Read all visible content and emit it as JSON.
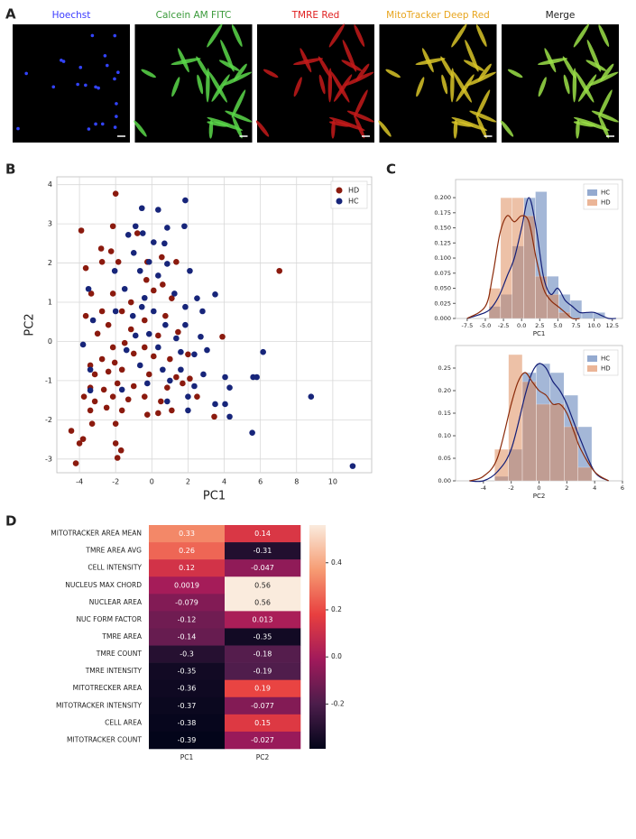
{
  "images": {
    "panel": "A",
    "titles": [
      "Hoechst",
      "Calcein AM FITC",
      "TMRE Red",
      "MitoTracker Deep Red",
      "Merge"
    ],
    "title_colors": [
      "#3b3bff",
      "#3a9a3a",
      "#e02020",
      "#e8a51e",
      "#222222"
    ]
  },
  "chart_data": [
    {
      "type": "scatter",
      "panel": "B",
      "x_label": "PC1",
      "y_label": "PC2",
      "xlim": [
        -5.25,
        12.15
      ],
      "ylim": [
        -3.35,
        4.2
      ],
      "xticks": [
        -4,
        -2,
        0,
        2,
        4,
        6,
        8,
        10
      ],
      "yticks": [
        -3,
        -2,
        -1,
        0,
        1,
        2,
        3,
        4
      ],
      "grid": true,
      "legend": "upper right",
      "series": [
        {
          "name": "HD",
          "color": "#8b1a0e",
          "x": [
            -2.0,
            -2.15,
            -3.9,
            -2.8,
            -2.25,
            -0.8,
            -3.65,
            -2.75,
            -1.85,
            -0.25,
            0.55,
            1.35,
            -0.3,
            0.6,
            -3.35,
            -2.15,
            -1.15,
            0.1,
            1.1,
            7.05,
            -2.75,
            -3.65,
            -1.65,
            -0.4,
            0.75,
            -2.4,
            -1.15,
            -3.0,
            0.35,
            1.45,
            -1.5,
            -0.4,
            -2.15,
            -1.0,
            -2.75,
            -3.4,
            -2.05,
            0.1,
            1.0,
            2.0,
            3.9,
            -3.15,
            -2.4,
            -1.65,
            -0.15,
            1.35,
            2.1,
            -3.4,
            -2.65,
            -1.9,
            -1.0,
            0.85,
            1.7,
            -3.75,
            -3.15,
            -2.15,
            -1.3,
            -0.4,
            0.5,
            2.5,
            -3.4,
            -2.5,
            -1.65,
            -0.25,
            0.35,
            1.1,
            3.45,
            -3.3,
            -2.0,
            -4.45,
            -3.8,
            -4.0,
            -2.0,
            -1.7,
            -4.2,
            -1.9
          ],
          "y": [
            3.77,
            2.94,
            2.83,
            2.37,
            2.3,
            2.76,
            1.87,
            2.03,
            2.03,
            2.03,
            2.15,
            2.03,
            1.57,
            1.45,
            1.22,
            1.22,
            1.0,
            1.3,
            1.1,
            1.8,
            0.77,
            0.65,
            0.77,
            0.54,
            0.65,
            0.42,
            0.31,
            0.2,
            0.15,
            0.24,
            -0.04,
            -0.15,
            -0.15,
            -0.31,
            -0.45,
            -0.61,
            -0.54,
            -0.38,
            -0.45,
            -0.33,
            0.12,
            -0.84,
            -0.77,
            -0.72,
            -0.84,
            -0.91,
            -0.95,
            -1.18,
            -1.23,
            -1.07,
            -1.14,
            -1.18,
            -1.07,
            -1.41,
            -1.53,
            -1.41,
            -1.48,
            -1.41,
            -1.53,
            -1.41,
            -1.76,
            -1.69,
            -1.76,
            -1.87,
            -1.83,
            -1.76,
            -1.92,
            -2.1,
            -2.1,
            -2.28,
            -2.49,
            -2.6,
            -2.6,
            -2.78,
            -3.11,
            -2.97
          ]
        },
        {
          "name": "HC",
          "color": "#17257a",
          "x": [
            -0.55,
            0.35,
            -0.9,
            -0.5,
            -1.3,
            0.85,
            1.85,
            0.7,
            0.1,
            1.8,
            -0.15,
            -1.0,
            0.85,
            2.1,
            -2.05,
            -3.5,
            -0.65,
            0.35,
            -1.5,
            -0.4,
            1.25,
            2.5,
            -1.05,
            0.1,
            1.85,
            2.8,
            3.5,
            -2.0,
            -0.55,
            0.75,
            1.85,
            -3.25,
            -0.15,
            2.7,
            1.35,
            -0.9,
            -3.8,
            -1.4,
            0.35,
            1.6,
            2.35,
            3.05,
            6.15,
            -3.4,
            -0.65,
            0.6,
            1.6,
            2.85,
            4.05,
            5.6,
            5.8,
            -0.25,
            1.0,
            2.35,
            -3.4,
            -1.65,
            2.0,
            0.85,
            4.3,
            8.8,
            4.05,
            2.0,
            3.5,
            4.3,
            5.55,
            11.1
          ],
          "y": [
            3.4,
            3.36,
            2.94,
            2.76,
            2.72,
            2.9,
            3.6,
            2.5,
            2.53,
            2.94,
            2.03,
            2.26,
            1.98,
            1.8,
            1.8,
            1.34,
            1.8,
            1.68,
            1.34,
            1.11,
            1.22,
            1.1,
            0.65,
            0.77,
            0.88,
            0.77,
            1.2,
            0.77,
            0.88,
            0.42,
            0.42,
            0.54,
            0.19,
            0.12,
            0.08,
            0.15,
            -0.08,
            -0.22,
            -0.15,
            -0.27,
            -0.33,
            -0.22,
            -0.27,
            -0.72,
            -0.61,
            -0.72,
            -0.72,
            -0.84,
            -0.91,
            -0.91,
            -0.91,
            -1.07,
            -1.0,
            -1.14,
            -1.25,
            -1.23,
            -1.41,
            -1.53,
            -1.18,
            -1.41,
            -1.6,
            -1.76,
            -1.6,
            -1.92,
            -2.33,
            -3.18
          ]
        }
      ]
    },
    {
      "type": "histogram",
      "panel": "C",
      "x_label": "PC1",
      "xlim": [
        -9.1,
        13.9
      ],
      "ylim": [
        0,
        0.23
      ],
      "xticks": [
        -7.5,
        {
          "value": -5,
          "label": "-5.0"
        },
        -2.5,
        {
          "value": 0,
          "label": "0.0"
        },
        2.5,
        {
          "value": 5,
          "label": "5.0"
        },
        7.5,
        {
          "value": 10,
          "label": "10.0"
        },
        12.5
      ],
      "yticks": [
        {
          "value": 0,
          "label": "0.000"
        },
        0.025,
        {
          "value": 0.05,
          "label": "0.050"
        },
        0.075,
        {
          "value": 0.1,
          "label": "0.100"
        },
        0.125,
        {
          "value": 0.15,
          "label": "0.150"
        },
        0.175,
        {
          "value": 0.2,
          "label": "0.200"
        }
      ],
      "legend": "upper right",
      "bins": [
        -4.5,
        -2.9,
        -1.3,
        0.3,
        1.9,
        3.5,
        5.1,
        6.7,
        8.3,
        9.9,
        11.5
      ],
      "series": [
        {
          "name": "HC",
          "color": "#4c72b0",
          "line_color": "#141f78",
          "values": [
            0.02,
            0.04,
            0.12,
            0.2,
            0.21,
            0.07,
            0.04,
            0.03,
            0.01,
            0.01
          ],
          "kde_x": [
            -7.5,
            -5,
            -4,
            -3,
            -2,
            -1,
            0,
            1,
            2,
            3,
            4,
            5,
            6,
            7,
            8,
            9,
            10,
            11,
            12,
            13
          ],
          "kde": [
            0,
            0.01,
            0.02,
            0.04,
            0.07,
            0.1,
            0.15,
            0.2,
            0.15,
            0.07,
            0.04,
            0.05,
            0.03,
            0.02,
            0.01,
            0.01,
            0.01,
            0.005,
            0,
            0
          ]
        },
        {
          "name": "HD",
          "color": "#dd8452",
          "line_color": "#8b2a0a",
          "values": [
            0.05,
            0.2,
            0.2,
            0.17,
            0.07,
            0.04,
            0.01,
            0,
            0,
            0
          ],
          "kde_x": [
            -7.5,
            -5,
            -4,
            -3,
            -2,
            -1,
            0,
            1,
            2,
            3,
            4,
            5,
            6,
            7,
            8
          ],
          "kde": [
            0,
            0.02,
            0.07,
            0.14,
            0.17,
            0.16,
            0.17,
            0.16,
            0.1,
            0.05,
            0.03,
            0.02,
            0.01,
            0,
            0
          ]
        }
      ]
    },
    {
      "type": "histogram",
      "x_label": "PC2",
      "xlim": [
        -6,
        6
      ],
      "ylim": [
        0,
        0.3
      ],
      "xticks": [
        -4,
        -2,
        0,
        2,
        4,
        6
      ],
      "yticks": [
        {
          "value": 0,
          "label": "0.00"
        },
        0.05,
        {
          "value": 0.1,
          "label": "0.10"
        },
        0.15,
        {
          "value": 0.2,
          "label": "0.20"
        },
        0.25
      ],
      "legend": "upper right",
      "bins": [
        -3.2,
        -2.2,
        -1.2,
        -0.2,
        0.8,
        1.8,
        2.8,
        3.8
      ],
      "series": [
        {
          "name": "HC",
          "color": "#4c72b0",
          "line_color": "#141f78",
          "values": [
            0.01,
            0.07,
            0.24,
            0.26,
            0.24,
            0.19,
            0.12
          ],
          "kde_x": [
            -5,
            -4,
            -3,
            -2,
            -1,
            -0.5,
            0,
            0.5,
            1,
            1.5,
            2,
            2.5,
            3,
            4,
            5
          ],
          "kde": [
            0,
            0,
            0.02,
            0.07,
            0.19,
            0.24,
            0.26,
            0.25,
            0.22,
            0.2,
            0.17,
            0.13,
            0.09,
            0.02,
            0
          ]
        },
        {
          "name": "HD",
          "color": "#dd8452",
          "line_color": "#8b2a0a",
          "values": [
            0.07,
            0.28,
            0.22,
            0.17,
            0.17,
            0.12,
            0.03
          ],
          "kde_x": [
            -5,
            -4,
            -3,
            -2,
            -1.5,
            -1,
            -0.5,
            0,
            0.5,
            1,
            1.5,
            2,
            2.5,
            3,
            4,
            5
          ],
          "kde": [
            0,
            0.01,
            0.05,
            0.17,
            0.22,
            0.24,
            0.22,
            0.2,
            0.19,
            0.17,
            0.17,
            0.15,
            0.11,
            0.07,
            0.02,
            0
          ]
        }
      ]
    },
    {
      "type": "heatmap",
      "panel": "D",
      "rows": [
        "MITOTRACKER AREA MEAN",
        "TMRE AREA AVG",
        "CELL INTENSITY",
        "NUCLEUS MAX CHORD",
        "NUCLEAR AREA",
        "NUC FORM FACTOR",
        "TMRE AREA",
        "TMRE COUNT",
        "TMRE INTENSITY",
        "MITOTRECKER AREA",
        "MITOTRACKER INTENSITY",
        "CELL AREA",
        "MITOTRACKER COUNT"
      ],
      "columns": [
        "PC1",
        "PC2"
      ],
      "values": [
        [
          0.33,
          0.14
        ],
        [
          0.26,
          -0.31
        ],
        [
          0.12,
          -0.047
        ],
        [
          0.0019,
          0.56
        ],
        [
          -0.079,
          0.56
        ],
        [
          -0.12,
          0.013
        ],
        [
          -0.14,
          -0.35
        ],
        [
          -0.3,
          -0.18
        ],
        [
          -0.35,
          -0.19
        ],
        [
          -0.36,
          0.19
        ],
        [
          -0.37,
          -0.077
        ],
        [
          -0.38,
          0.15
        ],
        [
          -0.39,
          -0.027
        ]
      ],
      "clim": [
        -0.39,
        0.56
      ],
      "cticks": [
        -0.2,
        {
          "value": 0,
          "label": "0.0"
        },
        0.2,
        0.4
      ],
      "colormap": [
        "#03051a",
        "#4c1d4b",
        "#a11a5b",
        "#e83f3f",
        "#f69c73",
        "#faebdd"
      ]
    }
  ]
}
